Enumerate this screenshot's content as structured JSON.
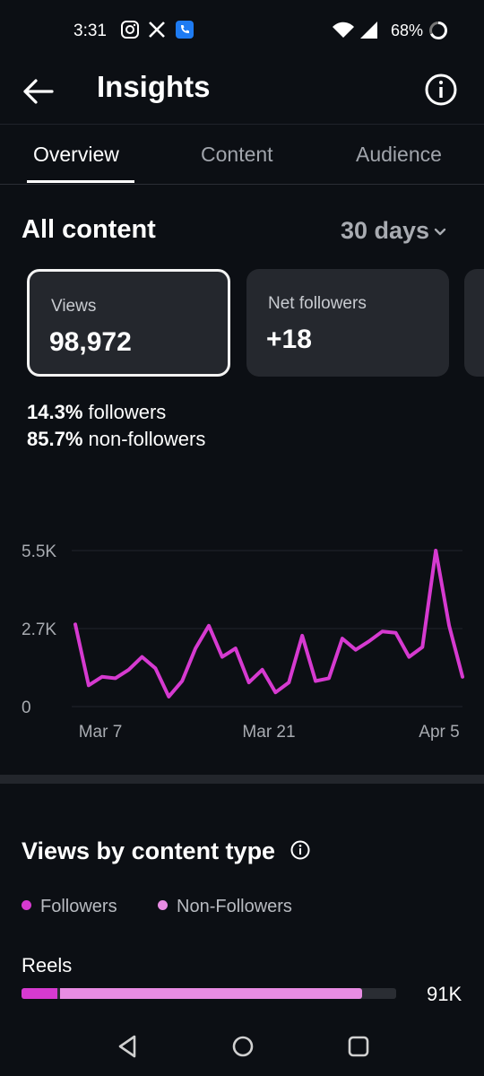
{
  "status_bar": {
    "time": "3:31",
    "battery": "68%",
    "icons": [
      "instagram-icon",
      "x-icon",
      "phone-app-icon",
      "wifi-icon",
      "signal-icon",
      "battery-ring-icon"
    ]
  },
  "header": {
    "title": "Insights"
  },
  "tabs": [
    {
      "label": "Overview",
      "active": true
    },
    {
      "label": "Content",
      "active": false
    },
    {
      "label": "Audience",
      "active": false
    }
  ],
  "section": {
    "title": "All content",
    "range": "30 days"
  },
  "cards": [
    {
      "label": "Views",
      "value": "98,972",
      "selected": true
    },
    {
      "label": "Net followers",
      "value": "+18",
      "selected": false
    }
  ],
  "audience_split": [
    {
      "pct": "14.3%",
      "label": " followers"
    },
    {
      "pct": "85.7%",
      "label": " non-followers"
    }
  ],
  "chart_data": {
    "type": "line",
    "series": [
      {
        "color": "#d63ad0",
        "values": [
          2900,
          750,
          1050,
          1000,
          1300,
          1750,
          1350,
          350,
          900,
          2050,
          2850,
          1750,
          2050,
          850,
          1300,
          500,
          850,
          2500,
          900,
          1000,
          2400,
          2000,
          2300,
          2650,
          2600,
          1750,
          2100,
          5500,
          2850,
          1050
        ]
      }
    ],
    "x_ticks": [
      "Mar 7",
      "Mar 21",
      "Apr 5"
    ],
    "y_ticks": [
      "0",
      "2.7K",
      "5.5K"
    ],
    "ylim": [
      0,
      5500
    ],
    "grid": true
  },
  "views_by_type": {
    "title": "Views by content type",
    "legend": [
      {
        "label": "Followers",
        "color": "#d63ad0"
      },
      {
        "label": "Non-Followers",
        "color": "#e88ce3"
      }
    ],
    "items": [
      {
        "label": "Reels",
        "value": "91K",
        "followers_fraction": 0.095,
        "non_followers_fraction": 0.815
      }
    ]
  }
}
